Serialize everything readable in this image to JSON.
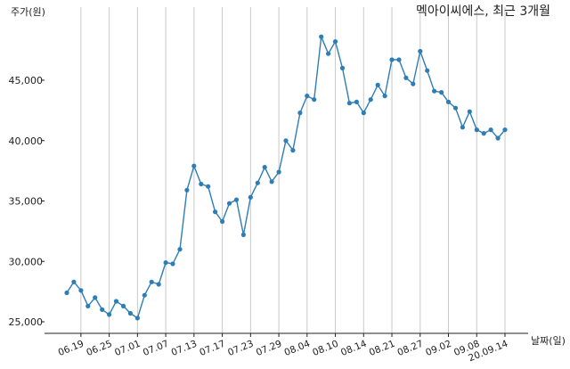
{
  "chart_data": {
    "type": "line",
    "title": "멕아이씨에스, 최근 3개월",
    "xlabel": "날짜(일)",
    "ylabel": "주가(원)",
    "ylim": [
      24000,
      50000
    ],
    "yticks": [
      25000,
      30000,
      35000,
      40000,
      45000
    ],
    "ytick_labels": [
      "25,000",
      "30,000",
      "35,000",
      "40,000",
      "45,000"
    ],
    "xtick_labels": [
      "06.19",
      "06.25",
      "07.01",
      "07.07",
      "07.13",
      "07.17",
      "07.23",
      "07.29",
      "08.04",
      "08.10",
      "08.14",
      "08.21",
      "08.27",
      "09.02",
      "09.08",
      "20.09.14"
    ],
    "xtick_indices": [
      2,
      6,
      10,
      14,
      18,
      22,
      26,
      30,
      34,
      38,
      42,
      46,
      50,
      54,
      58,
      62
    ],
    "grid": "vertical",
    "line_color": "#2e7db5",
    "series": [
      {
        "values": [
          27400,
          28300,
          27600,
          26300,
          27000,
          26000,
          25600,
          26700,
          26300,
          25700,
          25300,
          27200,
          28300,
          28100,
          29900,
          29800,
          31000,
          35900,
          37900,
          36400,
          36200,
          34100,
          33300,
          34800,
          35100,
          32200,
          35300,
          36500,
          37800,
          36600,
          37400,
          40000,
          39200,
          42300,
          43700,
          43400,
          48600,
          47200,
          48200,
          46000,
          43100,
          43200,
          42300,
          43400,
          44600,
          43700,
          46700,
          46700,
          45200,
          44700,
          47400,
          45800,
          44100,
          44000,
          43200,
          42700,
          41100,
          42400,
          40900,
          40600,
          40900,
          40200,
          40900
        ]
      }
    ]
  }
}
